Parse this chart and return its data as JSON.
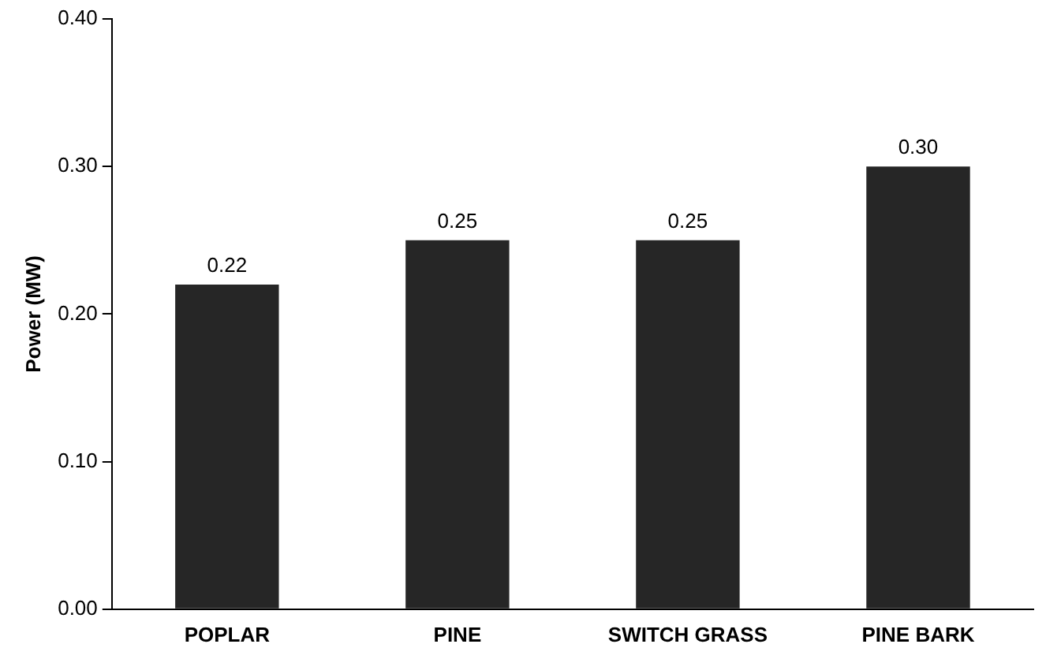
{
  "chart_data": {
    "type": "bar",
    "ylabel": "Power (MW)",
    "categories": [
      "POPLAR",
      "PINE",
      "SWITCH GRASS",
      "PINE BARK"
    ],
    "values": [
      0.22,
      0.25,
      0.25,
      0.3
    ],
    "color": "#262626",
    "value_labels": [
      "0.22",
      "0.25",
      "0.25",
      "0.30"
    ],
    "ylim": [
      0,
      0.4
    ],
    "yticks": [
      {
        "value": 0,
        "label": "0.00"
      },
      {
        "value": 0.1,
        "label": "0.10"
      },
      {
        "value": 0.2,
        "label": "0.20"
      },
      {
        "value": 0.3,
        "label": "0.30"
      },
      {
        "value": 0.4,
        "label": "0.40"
      }
    ],
    "grid": false,
    "legend": false
  }
}
